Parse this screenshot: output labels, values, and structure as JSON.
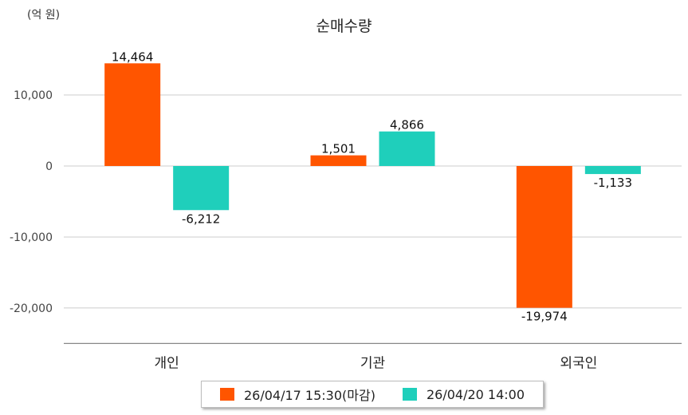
{
  "unit_label": "(억 원)",
  "chart_data": {
    "type": "bar",
    "title": "순매수량",
    "xlabel": "",
    "ylabel": "",
    "categories": [
      "개인",
      "기관",
      "외국인"
    ],
    "series": [
      {
        "name": "26/04/17 15:30(마감)",
        "color": "#FF5500",
        "values": [
          14464,
          1501,
          -19974
        ]
      },
      {
        "name": "26/04/20 14:00",
        "color": "#1FCFBB",
        "values": [
          -6212,
          4866,
          -1133
        ]
      }
    ],
    "value_labels": [
      [
        "14,464",
        "1,501",
        "-19,974"
      ],
      [
        "-6,212",
        "4,866",
        "-1,133"
      ]
    ],
    "yticks": [
      10000,
      0,
      -10000,
      -20000
    ],
    "ytick_labels": [
      "10,000",
      "0",
      "-10,000",
      "-20,000"
    ],
    "ylim": [
      -25000,
      15000
    ],
    "grid": true,
    "legend_position": "bottom"
  }
}
